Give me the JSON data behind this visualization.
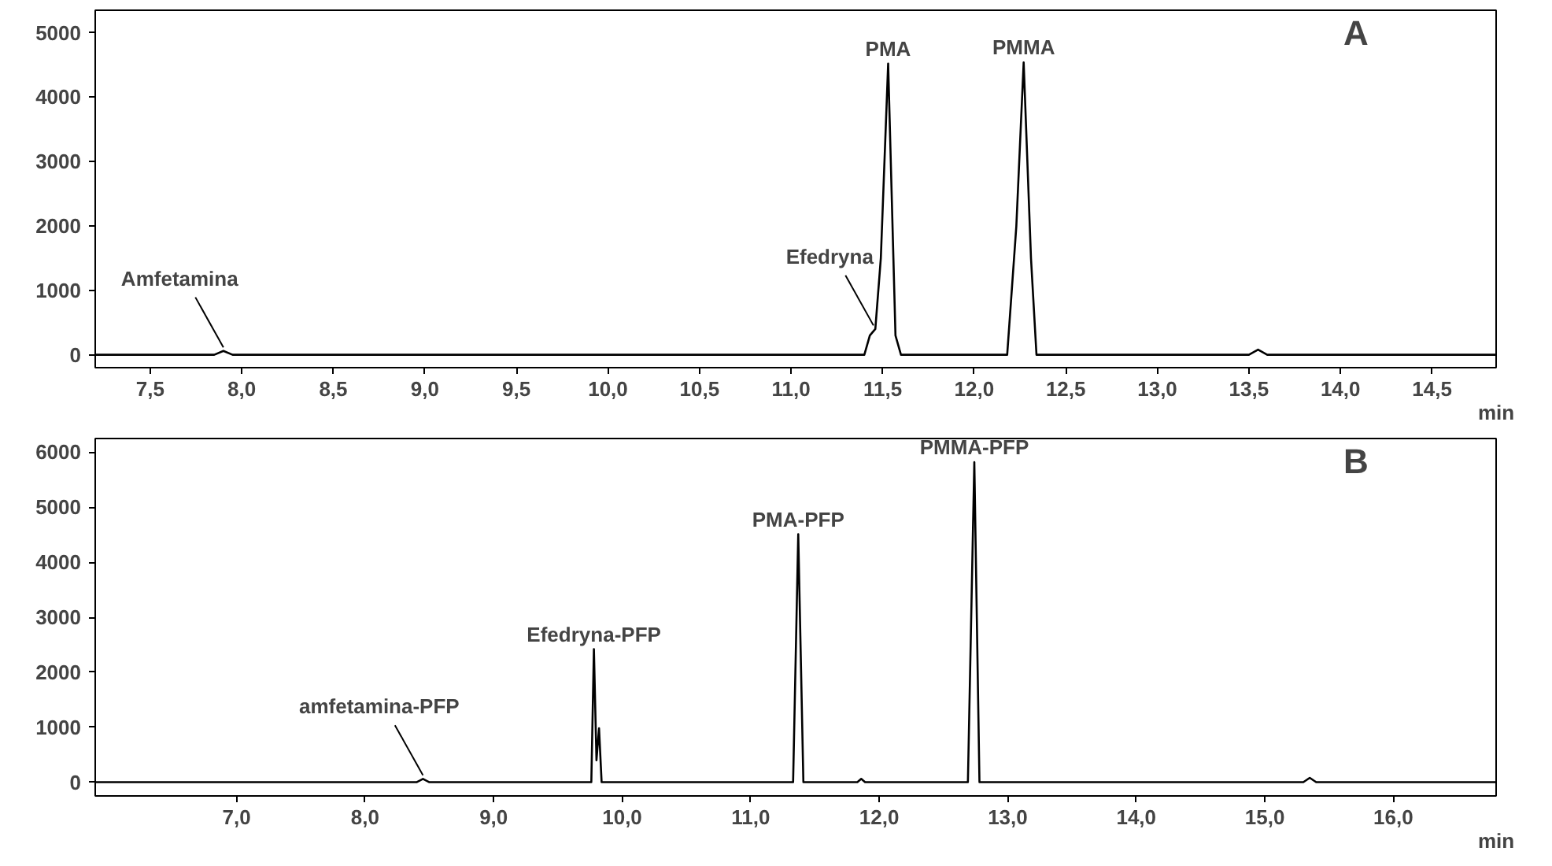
{
  "chart_data": [
    {
      "type": "line",
      "title": "A",
      "xlabel": "min",
      "xlim": [
        7.2,
        14.85
      ],
      "ylim": [
        -200,
        5350
      ],
      "xticks": [
        {
          "value": 7.5,
          "label": "7,5"
        },
        {
          "value": 8.0,
          "label": "8,0"
        },
        {
          "value": 8.5,
          "label": "8,5"
        },
        {
          "value": 9.0,
          "label": "9,0"
        },
        {
          "value": 9.5,
          "label": "9,5"
        },
        {
          "value": 10.0,
          "label": "10,0"
        },
        {
          "value": 10.5,
          "label": "10,5"
        },
        {
          "value": 11.0,
          "label": "11,0"
        },
        {
          "value": 11.5,
          "label": "11,5"
        },
        {
          "value": 12.0,
          "label": "12,0"
        },
        {
          "value": 12.5,
          "label": "12,5"
        },
        {
          "value": 13.0,
          "label": "13,0"
        },
        {
          "value": 13.5,
          "label": "13,5"
        },
        {
          "value": 14.0,
          "label": "14,0"
        },
        {
          "value": 14.5,
          "label": "14,5"
        }
      ],
      "yticks": [
        0,
        1000,
        2000,
        3000,
        4000,
        5000
      ],
      "grid": false,
      "marker": "none",
      "line_style": "solid",
      "series": [
        {
          "color": "#000000",
          "x": [
            7.2,
            7.85,
            7.9,
            7.95,
            11.4,
            11.43,
            11.46,
            11.49,
            11.53,
            11.57,
            11.6,
            12.18,
            12.23,
            12.27,
            12.31,
            12.34,
            13.5,
            13.55,
            13.6,
            14.85
          ],
          "values": [
            0,
            0,
            60,
            0,
            0,
            300,
            400,
            1500,
            4520,
            300,
            0,
            0,
            2000,
            4540,
            1500,
            0,
            0,
            80,
            0,
            0
          ]
        }
      ],
      "annotations": [
        {
          "text": "Amfetamina",
          "x": 7.9,
          "y": 60
        },
        {
          "text": "Efedryna",
          "x": 11.45,
          "y": 400
        },
        {
          "text": "PMA",
          "x": 11.53,
          "y": 4520
        },
        {
          "text": "PMMA",
          "x": 12.27,
          "y": 4540
        }
      ]
    },
    {
      "type": "line",
      "title": "B",
      "xlabel": "min",
      "xlim": [
        5.9,
        16.8
      ],
      "ylim": [
        -250,
        6250
      ],
      "xticks": [
        {
          "value": 7.0,
          "label": "7,0"
        },
        {
          "value": 8.0,
          "label": "8,0"
        },
        {
          "value": 9.0,
          "label": "9,0"
        },
        {
          "value": 10.0,
          "label": "10,0"
        },
        {
          "value": 11.0,
          "label": "11,0"
        },
        {
          "value": 12.0,
          "label": "12,0"
        },
        {
          "value": 13.0,
          "label": "13,0"
        },
        {
          "value": 14.0,
          "label": "14,0"
        },
        {
          "value": 15.0,
          "label": "15,0"
        },
        {
          "value": 16.0,
          "label": "16,0"
        }
      ],
      "yticks": [
        0,
        1000,
        2000,
        3000,
        4000,
        5000,
        6000
      ],
      "grid": false,
      "marker": "none",
      "line_style": "solid",
      "series": [
        {
          "color": "#000000",
          "x": [
            5.9,
            8.4,
            8.45,
            8.5,
            9.76,
            9.78,
            9.8,
            9.82,
            9.84,
            11.33,
            11.37,
            11.41,
            11.83,
            11.86,
            11.89,
            12.69,
            12.74,
            12.78,
            15.3,
            15.35,
            15.4,
            16.8
          ],
          "values": [
            0,
            0,
            60,
            0,
            0,
            2420,
            400,
            980,
            0,
            0,
            4510,
            0,
            0,
            60,
            0,
            0,
            5820,
            0,
            0,
            80,
            0,
            0
          ]
        }
      ],
      "annotations": [
        {
          "text": "amfetamina-PFP",
          "x": 8.45,
          "y": 60
        },
        {
          "text": "Efedryna-PFP",
          "x": 9.78,
          "y": 2420
        },
        {
          "text": "PMA-PFP",
          "x": 11.37,
          "y": 4510
        },
        {
          "text": "PMMA-PFP",
          "x": 12.74,
          "y": 5820
        }
      ]
    }
  ]
}
